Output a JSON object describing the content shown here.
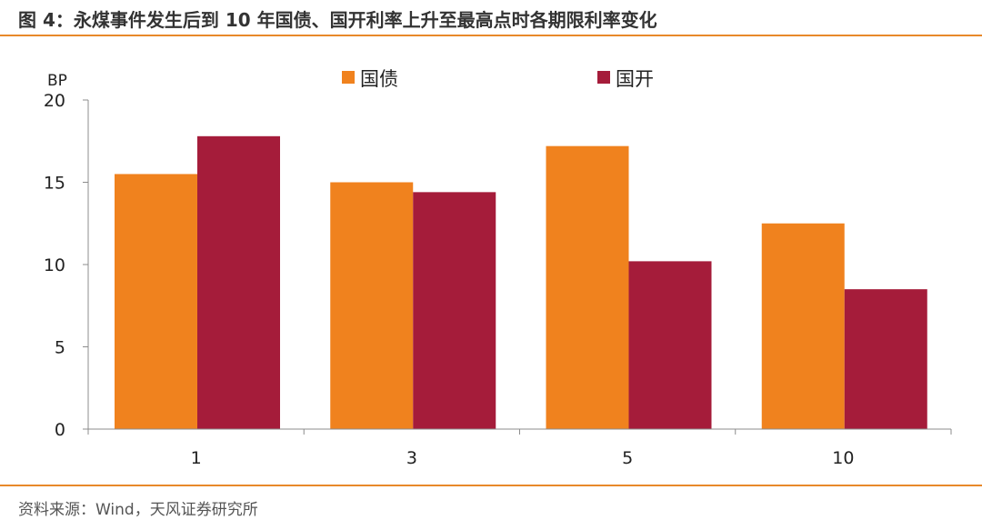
{
  "title": "图 4：永煤事件发生后到 10 年国债、国开利率上升至最高点时各期限利率变化",
  "source": "资料来源：Wind，天风证券研究所",
  "colors": {
    "accent_rule": "#e8892a",
    "series_guozhai": "#f0821e",
    "series_guokai": "#a51c3a"
  },
  "chart_data": {
    "type": "bar",
    "ylabel": "BP",
    "ylim": [
      0,
      20
    ],
    "yticks": [
      0,
      5,
      10,
      15,
      20
    ],
    "categories": [
      "1",
      "3",
      "5",
      "10"
    ],
    "legend_position": "top",
    "grid": false,
    "series": [
      {
        "name": "国债",
        "color": "#f0821e",
        "values": [
          15.5,
          15.0,
          17.2,
          12.5
        ]
      },
      {
        "name": "国开",
        "color": "#a51c3a",
        "values": [
          17.8,
          14.4,
          10.2,
          8.5
        ]
      }
    ]
  }
}
